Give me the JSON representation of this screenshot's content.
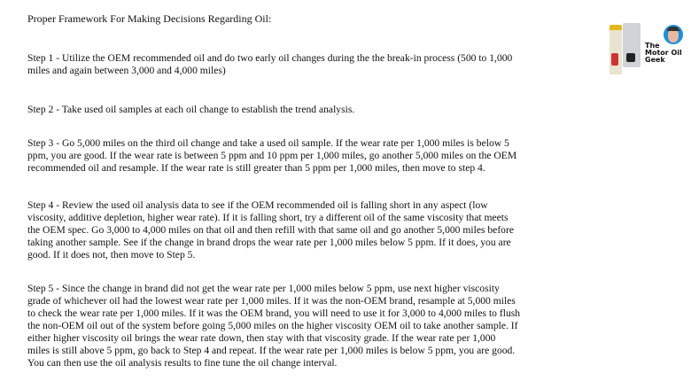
{
  "title": "Proper Framework For Making Decisions Regarding Oil:",
  "logo": {
    "text": "The Motor Oil Geek",
    "lines": [
      "The",
      "Motor Oil",
      "Geek"
    ]
  },
  "steps": [
    {
      "lines": [
        "Step 1 - Utilize the OEM recommended oil and do two early oil changes during the the break-in process (500 to 1,000",
        "miles and again between 3,000 and 4,000 miles)"
      ]
    },
    {
      "lines": [
        "Step 2 - Take used oil samples at each oil change to establish the trend analysis."
      ]
    },
    {
      "lines": [
        "Step 3 - Go 5,000 miles on the third oil change and take a used oil sample. If the wear rate per 1,000 miles is below 5",
        "ppm, you are good. If the wear rate is between 5 ppm and 10 ppm per 1,000 miles, go another 5,000 miles on the OEM",
        "recommended oil and resample. If the wear rate is still greater than 5 ppm per 1,000 miles, then move to step 4."
      ]
    },
    {
      "lines": [
        "Step 4 - Review the used oil analysis data to see if the OEM recommended oil is falling short in any aspect (low",
        "viscosity, additive depletion, higher wear rate). If it is falling short, try a different oil of the same viscosity that meets",
        "the OEM spec. Go 3,000 to 4,000 miles on that oil and then refill with that same oil and go another 5,000 miles before",
        "taking another sample. See if the change in brand drops the wear rate per 1,000 miles below 5 ppm. If it does, you are",
        "good. If it does not, then move to Step 5."
      ]
    },
    {
      "lines": [
        "Step 5 - Since the change in brand did not get the wear rate per 1,000 miles below 5 ppm, use next higher viscosity",
        "grade of whichever oil had the lowest wear rate per 1,000 miles. If it was the non-OEM brand, resample at 5,000 miles",
        "to check the wear rate per 1,000 miles. If it was the OEM brand, you will need to use it for 3,000 to 4,000 miles to flush",
        "the non-OEM oil out of the system before going 5,000 miles on the higher viscosity OEM oil to take another sample. If",
        "either higher viscosity oil brings the wear rate down, then stay with that viscosity grade. If the wear rate per 1,000",
        "miles is still above 5 ppm, go back to Step 4 and repeat. If the wear rate per 1,000 miles is below 5 ppm, you are good.",
        "You can then use the oil analysis results to fine tune the oil change interval."
      ]
    }
  ]
}
